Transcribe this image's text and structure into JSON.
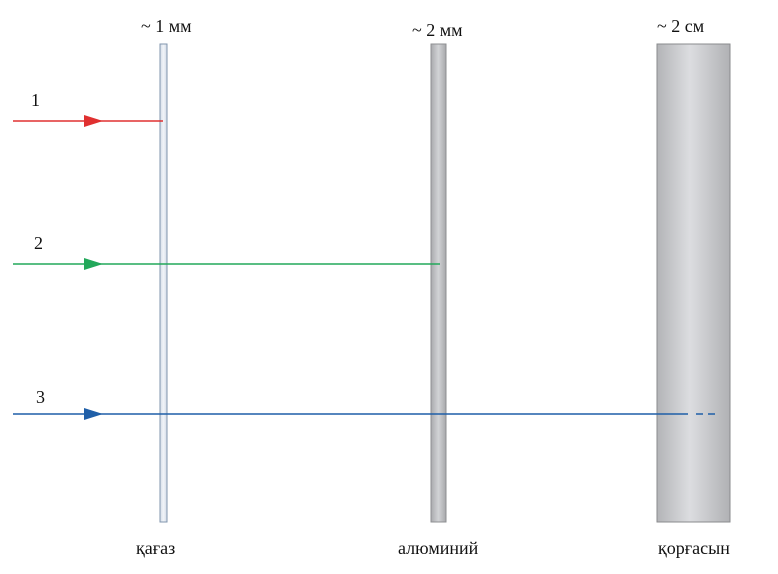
{
  "barriers": [
    {
      "name": "paper",
      "thickness_label": "~ 1 мм",
      "material_label": "қағаз",
      "fill": "#dfe6ee",
      "stroke": "#7f95ad"
    },
    {
      "name": "aluminium",
      "thickness_label": "~ 2 мм",
      "material_label": "алюминий",
      "fill": "#bfc0c3",
      "stroke": "#8c8d90"
    },
    {
      "name": "lead",
      "thickness_label": "~ 2 см",
      "material_label": "қорғасын",
      "fill": "#c4c5c8",
      "stroke": "#8a8b8e"
    }
  ],
  "rays": [
    {
      "label": "1",
      "color": "#e03030",
      "stops_at": "paper"
    },
    {
      "label": "2",
      "color": "#22a85a",
      "stops_at": "aluminium"
    },
    {
      "label": "3",
      "color": "#1f5fa8",
      "stops_at": "lead"
    }
  ]
}
